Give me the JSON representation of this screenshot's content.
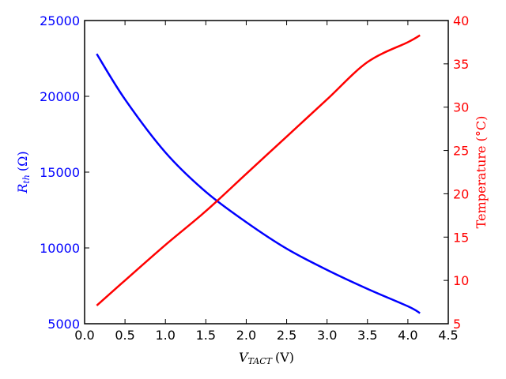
{
  "chart_data": {
    "type": "line",
    "xlabel": "V",
    "xlabel_sub": "TACT",
    "xlabel_unit": "(V)",
    "xlim": [
      0.0,
      4.5
    ],
    "x_ticks": [
      "0.0",
      "0.5",
      "1.0",
      "1.5",
      "2.0",
      "2.5",
      "3.0",
      "3.5",
      "4.0",
      "4.5"
    ],
    "grid": false,
    "axes": [
      {
        "side": "left",
        "label": "R",
        "label_sub": "th",
        "label_unit": "(Ω)",
        "ylim": [
          5000,
          25000
        ],
        "ticks": [
          "5000",
          "10000",
          "15000",
          "20000",
          "25000"
        ],
        "color": "#0000ff"
      },
      {
        "side": "right",
        "label": "Temperature (°C)",
        "ylim": [
          5,
          40
        ],
        "ticks": [
          "5",
          "10",
          "15",
          "20",
          "25",
          "30",
          "35",
          "40"
        ],
        "color": "#ff0000"
      }
    ],
    "series": [
      {
        "axis": "left",
        "color": "#0000ff",
        "x": [
          0.15,
          0.5,
          1.0,
          1.5,
          2.0,
          2.5,
          3.0,
          3.5,
          4.0,
          4.15
        ],
        "y": [
          22800,
          19800,
          16300,
          13700,
          11700,
          9950,
          8550,
          7300,
          6150,
          5700
        ]
      },
      {
        "axis": "right",
        "color": "#ff0000",
        "x": [
          0.15,
          0.5,
          1.0,
          1.5,
          2.0,
          2.5,
          3.0,
          3.5,
          4.0,
          4.15
        ],
        "y": [
          7.1,
          10.0,
          14.1,
          18.0,
          22.3,
          26.6,
          30.9,
          35.2,
          37.5,
          38.3
        ]
      }
    ]
  }
}
